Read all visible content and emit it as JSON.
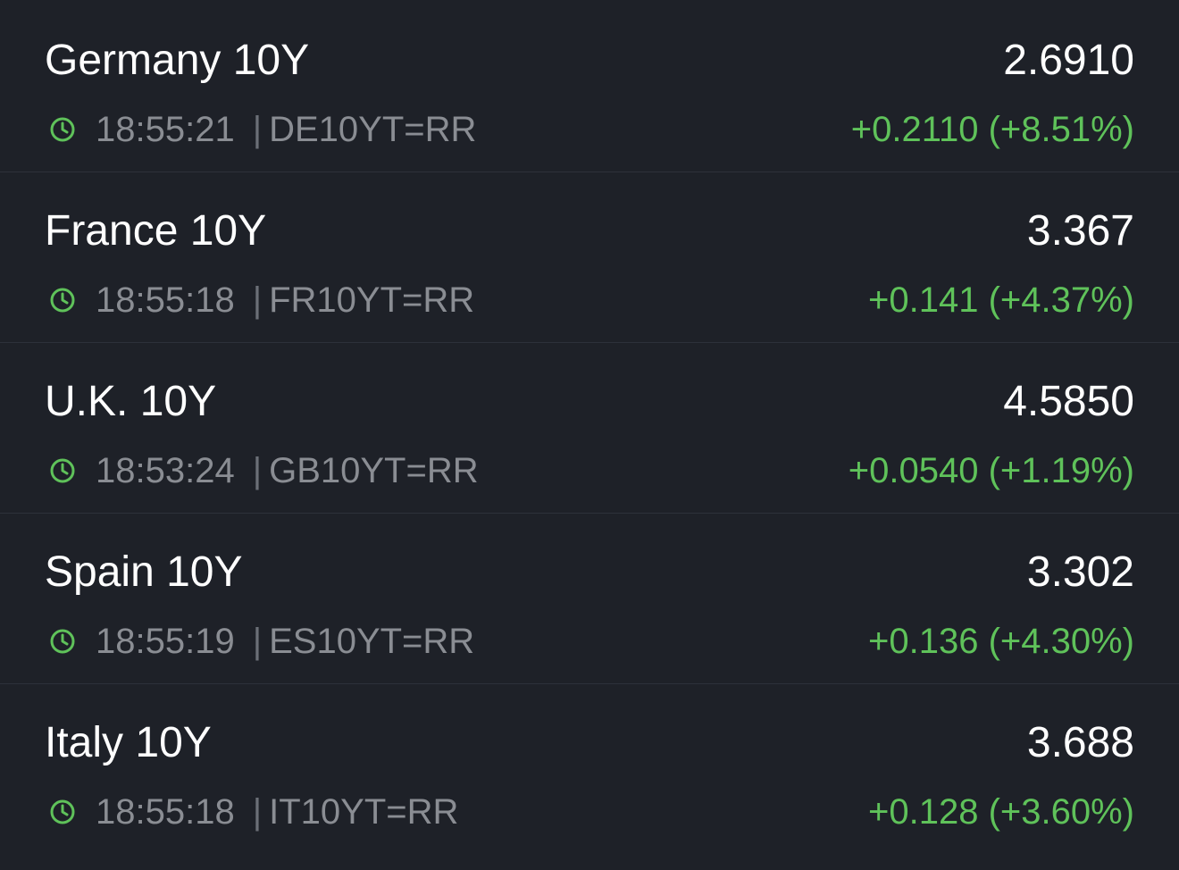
{
  "colors": {
    "background": "#1e2128",
    "positive": "#5fc25a",
    "text_primary": "#ffffff",
    "text_secondary": "#8a8d93"
  },
  "icons": {
    "time": "clock-icon"
  },
  "quotes": [
    {
      "name": "Germany 10Y",
      "value": "2.6910",
      "time": "18:55:21",
      "separator": "|",
      "ric": "DE10YT=RR",
      "change": "+0.2110 (+8.51%)"
    },
    {
      "name": "France 10Y",
      "value": "3.367",
      "time": "18:55:18",
      "separator": "|",
      "ric": "FR10YT=RR",
      "change": "+0.141 (+4.37%)"
    },
    {
      "name": "U.K. 10Y",
      "value": "4.5850",
      "time": "18:53:24",
      "separator": "|",
      "ric": "GB10YT=RR",
      "change": "+0.0540 (+1.19%)"
    },
    {
      "name": "Spain 10Y",
      "value": "3.302",
      "time": "18:55:19",
      "separator": "|",
      "ric": "ES10YT=RR",
      "change": "+0.136 (+4.30%)"
    },
    {
      "name": "Italy 10Y",
      "value": "3.688",
      "time": "18:55:18",
      "separator": "|",
      "ric": "IT10YT=RR",
      "change": "+0.128 (+3.60%)"
    }
  ]
}
